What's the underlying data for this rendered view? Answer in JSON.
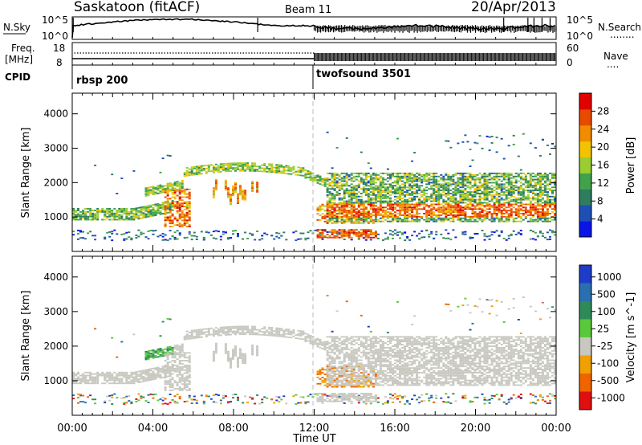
{
  "header": {
    "radar": "Saskatoon (fitACF)",
    "beam": "Beam 11",
    "date": "20/Apr/2013"
  },
  "strips": {
    "nsky_label": "N.Sky",
    "nsearch_label": "N.Search",
    "nsearch_key": "........",
    "freq_label_1": "Freq.",
    "freq_label_2": "[MHz]",
    "nave_label": "Nave",
    "nave_key": "....",
    "cpid_label": "CPID",
    "noise_tick_top": "10^5",
    "noise_tick_bottom": "10^0",
    "freq_tick_top": "18",
    "freq_tick_bottom": "8",
    "nave_tick_top": "60",
    "nave_tick_bottom": "0",
    "cpid_segments": [
      {
        "name": "rbsp 200",
        "start_hour": 0,
        "end_hour": 12
      },
      {
        "name": "twofsound 3501",
        "start_hour": 12,
        "end_hour": 24
      }
    ]
  },
  "chart_data": [
    {
      "type": "heatmap",
      "title": "",
      "ylabel": "Slant Range [km]",
      "ylim": [
        0,
        4600
      ],
      "yticks": [
        "1000",
        "2000",
        "3000",
        "4000"
      ],
      "ytick_values": [
        1000,
        2000,
        3000,
        4000
      ],
      "xlim": [
        0,
        24
      ],
      "colorbar_label": "Power [dB]",
      "colorbar_ticks": [
        "4",
        "8",
        "12",
        "16",
        "20",
        "24",
        "28"
      ],
      "colorbar_tick_values": [
        4,
        8,
        12,
        16,
        20,
        24,
        28
      ],
      "colorbar_range": [
        0,
        32
      ],
      "colorbar_colors": [
        "#0a14e6",
        "#1e50b4",
        "#2e7d5e",
        "#41a24a",
        "#9acd32",
        "#f2c300",
        "#f08c00",
        "#e84a00",
        "#e00000"
      ]
    },
    {
      "type": "heatmap",
      "title": "",
      "ylabel": "Slant Range [km]",
      "ylim": [
        0,
        4600
      ],
      "yticks": [
        "1000",
        "2000",
        "3000",
        "4000"
      ],
      "ytick_values": [
        1000,
        2000,
        3000,
        4000
      ],
      "xlim": [
        0,
        24
      ],
      "xlabel": "Time UT",
      "xticks": [
        "00:00",
        "04:00",
        "08:00",
        "12:00",
        "16:00",
        "20:00",
        "00:00"
      ],
      "xtick_values": [
        0,
        4,
        8,
        12,
        16,
        20,
        24
      ],
      "colorbar_label": "Velocity [m s^-1]",
      "colorbar_ticks": [
        "1000",
        "500",
        "100",
        "25",
        "-25",
        "-100",
        "-500",
        "-1000"
      ],
      "colorbar_colors": [
        "#1e3cc8",
        "#2a6fb0",
        "#2e8b57",
        "#5ac83c",
        "#c8c8c0",
        "#f0a000",
        "#f06400",
        "#e01010"
      ]
    }
  ]
}
